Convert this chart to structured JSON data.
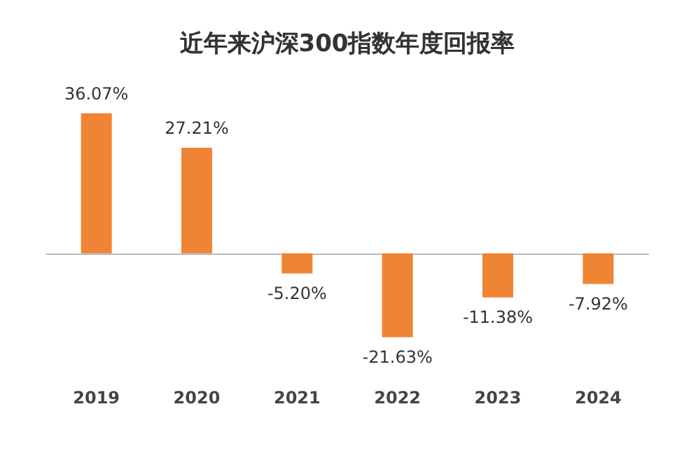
{
  "chart_data": {
    "type": "bar",
    "title": "近年来沪深300指数年度回报率",
    "categories": [
      "2019",
      "2020",
      "2021",
      "2022",
      "2023",
      "2024"
    ],
    "values": [
      36.07,
      27.21,
      -5.2,
      -21.63,
      -11.38,
      -7.92
    ],
    "value_labels": [
      "36.07%",
      "27.21%",
      "-5.20%",
      "-21.63%",
      "-11.38%",
      "-7.92%"
    ],
    "color": "#ef8534"
  }
}
